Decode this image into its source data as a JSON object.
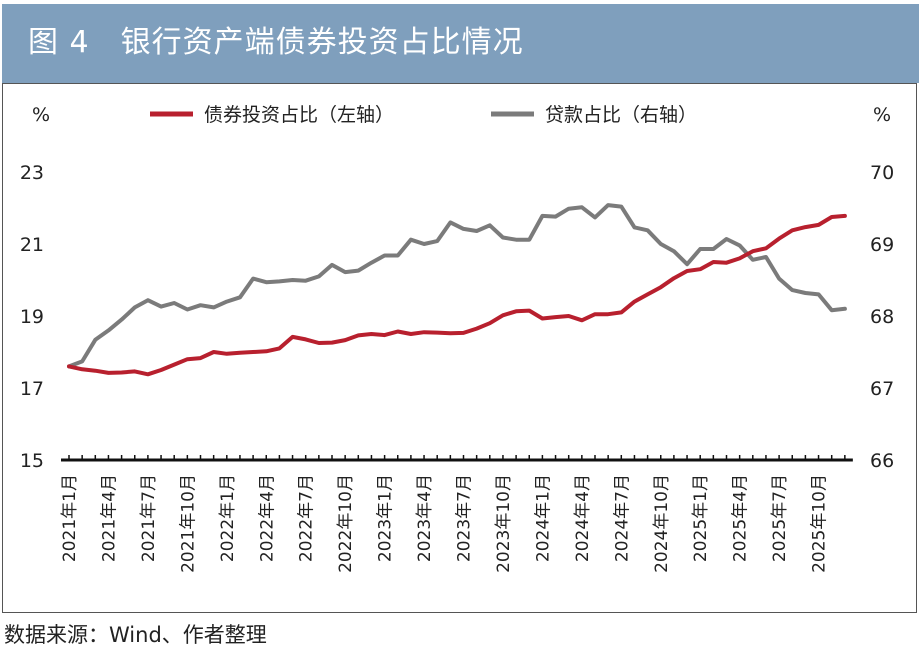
{
  "header": {
    "title": "图 4　银行资产端债券投资占比情况"
  },
  "source": "数据来源：Wind、作者整理",
  "colors": {
    "header_bg": "#7f9fbd",
    "bond_series": "#b8202e",
    "loan_series": "#7b7b7b"
  },
  "chart_data": {
    "type": "line",
    "left_unit": "%",
    "right_unit": "%",
    "legend_position": "top-center",
    "grid": false,
    "left_axis": {
      "range": [
        15,
        23
      ],
      "ticks": [
        "15",
        "17",
        "19",
        "21",
        "23"
      ]
    },
    "right_axis": {
      "range": [
        66,
        70
      ],
      "ticks": [
        "66",
        "67",
        "68",
        "69",
        "70"
      ]
    },
    "x_tick_labels": [
      "2021年1月",
      "2021年4月",
      "2021年7月",
      "2021年10月",
      "2022年1月",
      "2022年4月",
      "2022年7月",
      "2022年10月",
      "2023年1月",
      "2023年4月",
      "2023年7月",
      "2023年10月",
      "2024年1月",
      "2024年4月",
      "2024年7月",
      "2024年10月",
      "2025年1月",
      "2025年4月",
      "2025年7月",
      "2025年10月"
    ],
    "x": [
      "2021-01",
      "2021-02",
      "2021-03",
      "2021-04",
      "2021-05",
      "2021-06",
      "2021-07",
      "2021-08",
      "2021-09",
      "2021-10",
      "2021-11",
      "2021-12",
      "2022-01",
      "2022-02",
      "2022-03",
      "2022-04",
      "2022-05",
      "2022-06",
      "2022-07",
      "2022-08",
      "2022-09",
      "2022-10",
      "2022-11",
      "2022-12",
      "2023-01",
      "2023-02",
      "2023-03",
      "2023-04",
      "2023-05",
      "2023-06",
      "2023-07",
      "2023-08",
      "2023-09",
      "2023-10",
      "2023-11",
      "2023-12",
      "2024-01",
      "2024-02",
      "2024-03",
      "2024-04",
      "2024-05",
      "2024-06",
      "2024-07",
      "2024-08",
      "2024-09",
      "2024-10",
      "2024-11",
      "2024-12",
      "2025-01",
      "2025-02",
      "2025-03",
      "2025-04",
      "2025-05",
      "2025-06",
      "2025-07",
      "2025-08",
      "2025-09",
      "2025-10",
      "2025-11",
      "2025-12"
    ],
    "series": [
      {
        "name": "债券投资占比（左轴）",
        "axis": "left",
        "color": "#b8202e",
        "values": [
          17.6,
          17.52,
          17.48,
          17.42,
          17.43,
          17.46,
          17.38,
          17.5,
          17.65,
          17.8,
          17.83,
          18.0,
          17.95,
          17.98,
          18.0,
          18.02,
          18.1,
          18.42,
          18.35,
          18.25,
          18.26,
          18.33,
          18.46,
          18.5,
          18.47,
          18.57,
          18.5,
          18.55,
          18.54,
          18.52,
          18.53,
          18.65,
          18.8,
          19.02,
          19.13,
          19.15,
          18.93,
          18.97,
          19.0,
          18.88,
          19.05,
          19.05,
          19.1,
          19.4,
          19.6,
          19.8,
          20.05,
          20.25,
          20.3,
          20.5,
          20.48,
          20.6,
          20.8,
          20.88,
          21.15,
          21.38,
          21.47,
          21.53,
          21.75,
          21.78
        ]
      },
      {
        "name": "贷款占比（右轴）",
        "axis": "right",
        "color": "#7b7b7b",
        "values": [
          67.3,
          67.37,
          67.67,
          67.8,
          67.95,
          68.12,
          68.22,
          68.13,
          68.18,
          68.09,
          68.15,
          68.12,
          68.2,
          68.26,
          68.52,
          68.47,
          68.48,
          68.5,
          68.49,
          68.55,
          68.71,
          68.61,
          68.63,
          68.74,
          68.84,
          68.84,
          69.06,
          69.0,
          69.04,
          69.3,
          69.21,
          69.18,
          69.26,
          69.09,
          69.06,
          69.06,
          69.39,
          69.38,
          69.49,
          69.51,
          69.37,
          69.54,
          69.52,
          69.23,
          69.19,
          69.0,
          68.9,
          68.72,
          68.93,
          68.93,
          69.07,
          68.98,
          68.78,
          68.82,
          68.52,
          68.36,
          68.32,
          68.3,
          68.08,
          68.1
        ]
      }
    ]
  }
}
